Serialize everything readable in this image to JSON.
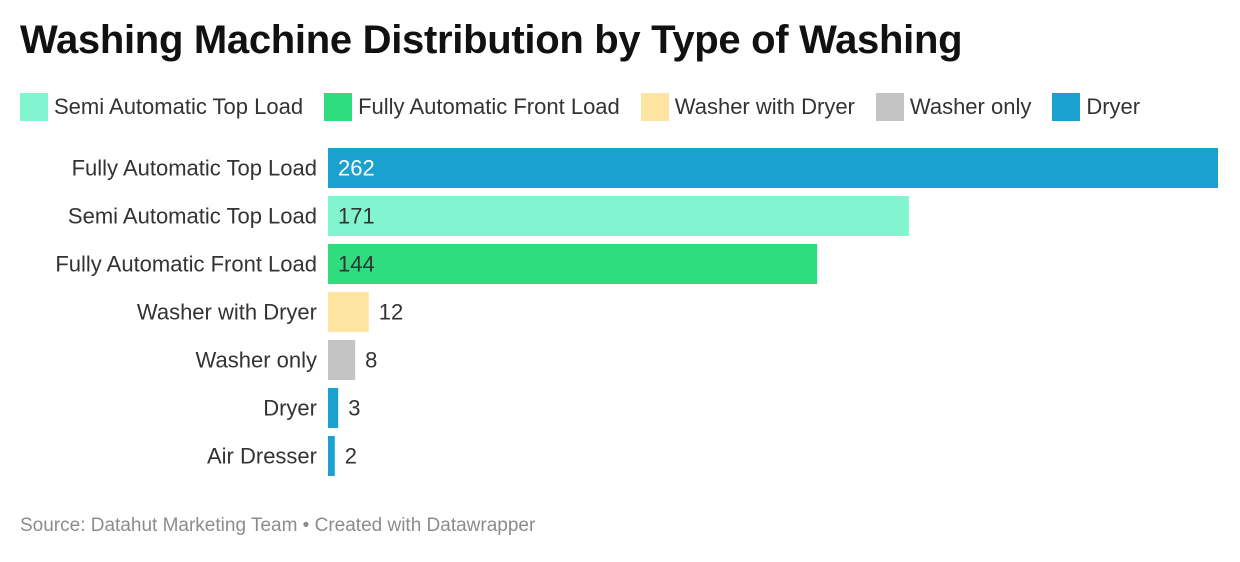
{
  "title": "Washing Machine Distribution by Type of Washing",
  "legend": [
    {
      "label": "Semi Automatic Top Load",
      "color": "#82f4cf"
    },
    {
      "label": "Fully Automatic Front Load",
      "color": "#2fdc7e"
    },
    {
      "label": "Washer with Dryer",
      "color": "#fde5a1"
    },
    {
      "label": "Washer only",
      "color": "#c4c4c4"
    },
    {
      "label": "Dryer",
      "color": "#1aa1cd"
    }
  ],
  "chart_data": {
    "type": "bar",
    "orientation": "horizontal",
    "categories": [
      "Fully Automatic Top Load",
      "Semi Automatic Top Load",
      "Fully Automatic Front Load",
      "Washer with Dryer",
      "Washer only",
      "Dryer",
      "Air Dresser"
    ],
    "values": [
      262,
      171,
      144,
      12,
      8,
      3,
      2
    ],
    "colors": [
      "#1aa1cd",
      "#82f4cf",
      "#2fdc7e",
      "#fde5a1",
      "#c4c4c4",
      "#1aa1cd",
      "#1aa1cd"
    ],
    "value_label_colors": [
      "#ffffff",
      "#333333",
      "#333333",
      "#333333",
      "#333333",
      "#333333",
      "#333333"
    ],
    "xlim": [
      0,
      262
    ],
    "grid": false,
    "legend_position": "top"
  },
  "footer": "Source: Datahut Marketing Team • Created with Datawrapper"
}
